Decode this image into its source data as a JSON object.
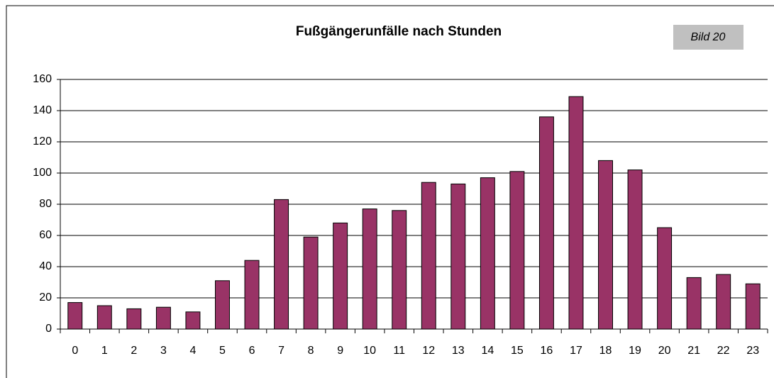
{
  "chart_data": {
    "type": "bar",
    "title": "Fußgängerunfälle nach Stunden",
    "annotation": "Bild 20",
    "categories": [
      "0",
      "1",
      "2",
      "3",
      "4",
      "5",
      "6",
      "7",
      "8",
      "9",
      "10",
      "11",
      "12",
      "13",
      "14",
      "15",
      "16",
      "17",
      "18",
      "19",
      "20",
      "21",
      "22",
      "23"
    ],
    "values": [
      17,
      15,
      13,
      14,
      11,
      31,
      44,
      83,
      59,
      68,
      77,
      76,
      94,
      93,
      97,
      101,
      136,
      149,
      108,
      102,
      65,
      33,
      35,
      29
    ],
    "color": "#993366",
    "ylim": [
      0,
      160
    ],
    "yticks": [
      0,
      20,
      40,
      60,
      80,
      100,
      120,
      140,
      160
    ],
    "grid": true
  }
}
